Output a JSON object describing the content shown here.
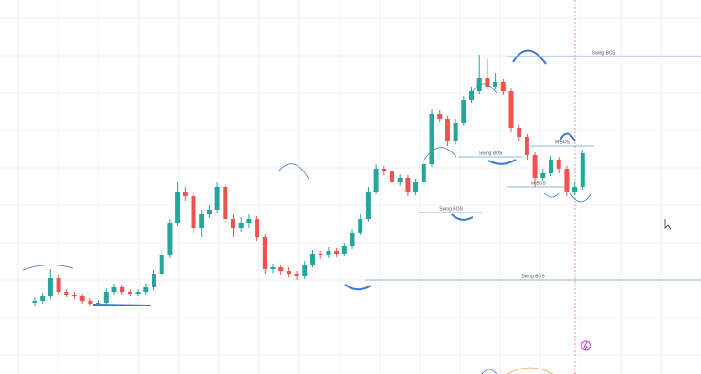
{
  "chart_data": {
    "type": "candlestick",
    "open": [
      78,
      80,
      85,
      105,
      90,
      87,
      85,
      80,
      77,
      78,
      90,
      95,
      90,
      88,
      90,
      95,
      110,
      130,
      165,
      200,
      195,
      160,
      175,
      180,
      205,
      170,
      160,
      165,
      170,
      150,
      115,
      117,
      113,
      110,
      107,
      120,
      132,
      130,
      135,
      132,
      140,
      155,
      170,
      200,
      225,
      222,
      210,
      215,
      200,
      210,
      230,
      285,
      280,
      255,
      275,
      300,
      310,
      325,
      315,
      320,
      310,
      270,
      260,
      240,
      215,
      220,
      235,
      225,
      200,
      205
    ],
    "high": [
      84,
      89,
      115,
      108,
      93,
      90,
      88,
      83,
      81,
      94,
      99,
      98,
      93,
      93,
      99,
      114,
      135,
      170,
      210,
      205,
      198,
      180,
      185,
      210,
      208,
      175,
      172,
      175,
      173,
      153,
      121,
      120,
      117,
      113,
      124,
      136,
      135,
      139,
      138,
      144,
      159,
      175,
      205,
      230,
      228,
      225,
      219,
      218,
      214,
      235,
      290,
      289,
      283,
      280,
      305,
      315,
      350,
      345,
      330,
      323,
      313,
      273,
      263,
      243,
      225,
      239,
      238,
      228,
      210,
      246
    ],
    "low": [
      75,
      77,
      82,
      87,
      84,
      82,
      77,
      74,
      74,
      75,
      87,
      87,
      85,
      85,
      87,
      92,
      107,
      127,
      162,
      190,
      155,
      150,
      171,
      177,
      165,
      150,
      156,
      160,
      146,
      110,
      111,
      109,
      106,
      103,
      104,
      117,
      126,
      127,
      128,
      129,
      137,
      152,
      167,
      197,
      218,
      205,
      206,
      195,
      196,
      207,
      227,
      276,
      250,
      252,
      272,
      297,
      307,
      312,
      312,
      306,
      265,
      255,
      235,
      205,
      212,
      217,
      220,
      195,
      196,
      202
    ],
    "close": [
      80,
      85,
      105,
      90,
      87,
      85,
      80,
      77,
      78,
      90,
      95,
      90,
      88,
      90,
      95,
      110,
      130,
      165,
      200,
      195,
      160,
      175,
      180,
      205,
      170,
      160,
      165,
      170,
      150,
      115,
      117,
      113,
      110,
      107,
      120,
      132,
      130,
      135,
      132,
      140,
      155,
      170,
      200,
      225,
      222,
      210,
      215,
      200,
      210,
      230,
      285,
      280,
      255,
      275,
      300,
      310,
      325,
      315,
      320,
      310,
      270,
      260,
      240,
      215,
      220,
      235,
      225,
      200,
      205,
      242
    ],
    "up_color": "#26a69a",
    "down_color": "#ef5350",
    "ylim": [
      0,
      410
    ],
    "grid": true,
    "annotations": [
      {
        "label": "Swing BOS",
        "value": 348,
        "from": 64
      },
      {
        "label": "Swing BOS",
        "value": 177,
        "from": 53
      },
      {
        "label": "Swing BOS",
        "value": 103,
        "from": 41
      },
      {
        "label": "Swing BOS",
        "value": 238,
        "from": 58
      },
      {
        "label": "M BOS",
        "value": 250,
        "from": 67
      },
      {
        "label": "M BOS",
        "value": 205,
        "from": 64
      }
    ]
  }
}
